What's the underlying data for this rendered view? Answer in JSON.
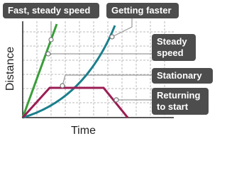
{
  "axes": {
    "y_label": "Distance",
    "x_label": "Time"
  },
  "labels": [
    "Fast, steady speed",
    "Getting faster",
    "Steady speed",
    "Stationary",
    "Returning to start"
  ]
}
